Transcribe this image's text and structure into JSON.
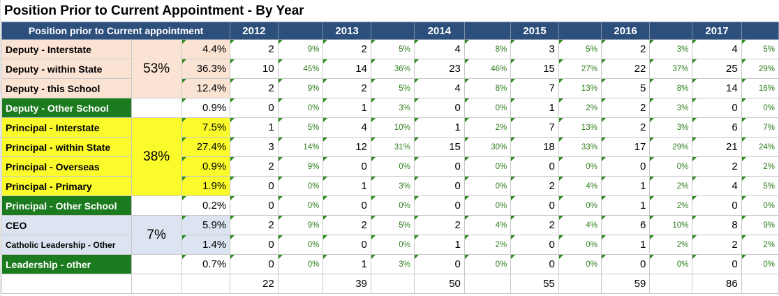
{
  "title": "Position Prior to Current Appointment - By Year",
  "header": {
    "label": "Position prior to Current appointment",
    "years": [
      "2012",
      "2013",
      "2014",
      "2015",
      "2016",
      "2017"
    ]
  },
  "colors": {
    "header": "#2c4f7c",
    "peach": "#fbe3d4",
    "yellow": "#fbfb2c",
    "green": "#1d7b1f",
    "blue": "#dbe4f0",
    "pct_text": "#2e7d1c"
  },
  "rows": [
    {
      "label": "Deputy - Interstate",
      "style": "peach",
      "group": "53%",
      "group_span": 3,
      "share": "4.4%",
      "cells": [
        [
          "2",
          "9%"
        ],
        [
          "2",
          "5%"
        ],
        [
          "4",
          "8%"
        ],
        [
          "3",
          "5%"
        ],
        [
          "2",
          "3%"
        ],
        [
          "4",
          "5%"
        ]
      ]
    },
    {
      "label": "Deputy - within State",
      "style": "peach",
      "share": "36.3%",
      "cells": [
        [
          "10",
          "45%"
        ],
        [
          "14",
          "36%"
        ],
        [
          "23",
          "46%"
        ],
        [
          "15",
          "27%"
        ],
        [
          "22",
          "37%"
        ],
        [
          "25",
          "29%"
        ]
      ]
    },
    {
      "label": "Deputy - this School",
      "style": "peach",
      "share": "12.4%",
      "cells": [
        [
          "2",
          "9%"
        ],
        [
          "2",
          "5%"
        ],
        [
          "4",
          "8%"
        ],
        [
          "7",
          "13%"
        ],
        [
          "5",
          "8%"
        ],
        [
          "14",
          "16%"
        ]
      ]
    },
    {
      "label": "Deputy - Other School",
      "style": "green",
      "group": "",
      "group_span": 1,
      "share": "0.9%",
      "share_style": "white",
      "cells": [
        [
          "0",
          "0%"
        ],
        [
          "1",
          "3%"
        ],
        [
          "0",
          "0%"
        ],
        [
          "1",
          "2%"
        ],
        [
          "2",
          "3%"
        ],
        [
          "0",
          "0%"
        ]
      ]
    },
    {
      "label": "Principal - Interstate",
      "style": "yellow",
      "group": "38%",
      "group_span": 4,
      "share": "7.5%",
      "cells": [
        [
          "1",
          "5%"
        ],
        [
          "4",
          "10%"
        ],
        [
          "1",
          "2%"
        ],
        [
          "7",
          "13%"
        ],
        [
          "2",
          "3%"
        ],
        [
          "6",
          "7%"
        ]
      ]
    },
    {
      "label": "Principal - within State",
      "style": "yellow",
      "share": "27.4%",
      "cells": [
        [
          "3",
          "14%"
        ],
        [
          "12",
          "31%"
        ],
        [
          "15",
          "30%"
        ],
        [
          "18",
          "33%"
        ],
        [
          "17",
          "29%"
        ],
        [
          "21",
          "24%"
        ]
      ]
    },
    {
      "label": "Principal - Overseas",
      "style": "yellow",
      "share": "0.9%",
      "cells": [
        [
          "2",
          "9%"
        ],
        [
          "0",
          "0%"
        ],
        [
          "0",
          "0%"
        ],
        [
          "0",
          "0%"
        ],
        [
          "0",
          "0%"
        ],
        [
          "2",
          "2%"
        ]
      ]
    },
    {
      "label": "Principal - Primary",
      "style": "yellow",
      "share": "1.9%",
      "cells": [
        [
          "0",
          "0%"
        ],
        [
          "1",
          "3%"
        ],
        [
          "0",
          "0%"
        ],
        [
          "2",
          "4%"
        ],
        [
          "1",
          "2%"
        ],
        [
          "4",
          "5%"
        ]
      ]
    },
    {
      "label": "Principal - Other School",
      "style": "green",
      "group": "",
      "group_span": 1,
      "share": "0.2%",
      "share_style": "white",
      "cells": [
        [
          "0",
          "0%"
        ],
        [
          "0",
          "0%"
        ],
        [
          "0",
          "0%"
        ],
        [
          "0",
          "0%"
        ],
        [
          "1",
          "2%"
        ],
        [
          "0",
          "0%"
        ]
      ]
    },
    {
      "label": "CEO",
      "style": "blue",
      "group": "7%",
      "group_span": 2,
      "share": "5.9%",
      "cells": [
        [
          "2",
          "9%"
        ],
        [
          "2",
          "5%"
        ],
        [
          "2",
          "4%"
        ],
        [
          "2",
          "4%"
        ],
        [
          "6",
          "10%"
        ],
        [
          "8",
          "9%"
        ]
      ]
    },
    {
      "label": "Catholic Leadership - Other",
      "style": "blue",
      "small": true,
      "share": "1.4%",
      "cells": [
        [
          "0",
          "0%"
        ],
        [
          "0",
          "0%"
        ],
        [
          "1",
          "2%"
        ],
        [
          "0",
          "0%"
        ],
        [
          "1",
          "2%"
        ],
        [
          "2",
          "2%"
        ]
      ]
    },
    {
      "label": "Leadership - other",
      "style": "green",
      "group": "",
      "group_span": 1,
      "share": "0.7%",
      "share_style": "white",
      "cells": [
        [
          "0",
          "0%"
        ],
        [
          "1",
          "3%"
        ],
        [
          "0",
          "0%"
        ],
        [
          "0",
          "0%"
        ],
        [
          "0",
          "0%"
        ],
        [
          "0",
          "0%"
        ]
      ]
    }
  ],
  "totals": [
    "22",
    "39",
    "50",
    "55",
    "59",
    "86"
  ]
}
